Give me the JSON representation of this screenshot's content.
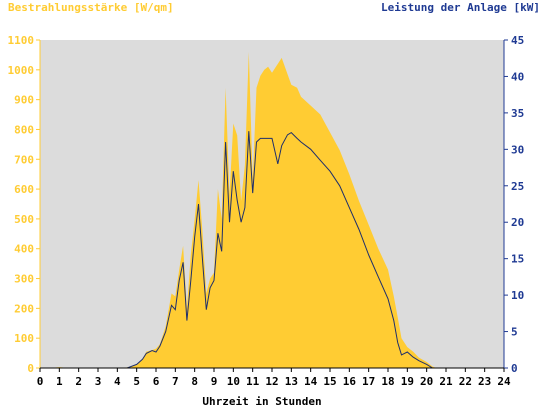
{
  "chart_data": {
    "type": "area",
    "title_left": "Bestrahlungsstärke [W/qm]",
    "title_right": "Leistung der Anlage [kW]",
    "xlabel": "Uhrzeit in Stunden",
    "x_ticks": [
      "0",
      "1",
      "2",
      "3",
      "4",
      "5",
      "6",
      "7",
      "8",
      "9",
      "10",
      "11",
      "12",
      "13",
      "14",
      "15",
      "16",
      "17",
      "18",
      "19",
      "20",
      "21",
      "22",
      "23",
      "24"
    ],
    "y_left_ticks": [
      "0",
      "100",
      "200",
      "300",
      "400",
      "500",
      "600",
      "700",
      "800",
      "900",
      "1000",
      "1100"
    ],
    "y_right_ticks": [
      "0",
      "5",
      "10",
      "15",
      "20",
      "25",
      "30",
      "35",
      "40",
      "45"
    ],
    "xlim": [
      0,
      24
    ],
    "y_left_lim": [
      0,
      1100
    ],
    "y_right_lim": [
      0,
      45
    ],
    "grid": false,
    "colors": {
      "plot_background": "#dcdcdc",
      "irradiance_fill": "#ffcc33",
      "power_line": "#1f2f6b",
      "left_axis_text": "#ffcc33",
      "right_axis_text": "#1f3a93",
      "axis_text": "#000000"
    },
    "series": [
      {
        "axis": "left",
        "style": "area",
        "x": [
          0,
          0.5,
          1,
          1.5,
          2,
          3,
          4,
          4.5,
          5,
          5.3,
          5.5,
          5.8,
          6,
          6.2,
          6.5,
          6.8,
          7,
          7.2,
          7.4,
          7.6,
          7.8,
          8,
          8.2,
          8.4,
          8.6,
          8.8,
          9,
          9.2,
          9.4,
          9.6,
          9.8,
          10,
          10.2,
          10.4,
          10.6,
          10.8,
          11,
          11.2,
          11.4,
          11.6,
          11.8,
          12,
          12.5,
          13,
          13.3,
          13.5,
          14,
          14.5,
          15,
          15.5,
          16,
          16.5,
          17,
          17.5,
          18,
          18.3,
          18.5,
          18.7,
          19,
          19.3,
          19.6,
          20,
          20.3,
          20.5,
          21,
          22,
          23,
          24
        ],
        "values": [
          0,
          0,
          3,
          0,
          0,
          0,
          0,
          2,
          10,
          30,
          55,
          60,
          65,
          80,
          140,
          250,
          240,
          330,
          410,
          200,
          380,
          500,
          630,
          460,
          250,
          300,
          320,
          600,
          500,
          940,
          580,
          820,
          780,
          560,
          680,
          1060,
          630,
          940,
          980,
          1000,
          1010,
          990,
          1040,
          950,
          940,
          910,
          880,
          850,
          790,
          730,
          650,
          560,
          480,
          400,
          330,
          240,
          170,
          100,
          70,
          55,
          35,
          20,
          5,
          0,
          0,
          0,
          0,
          0
        ]
      },
      {
        "axis": "right",
        "style": "line",
        "x": [
          0,
          0.5,
          1,
          1.5,
          2,
          3,
          4,
          4.5,
          5,
          5.3,
          5.5,
          5.8,
          6,
          6.2,
          6.5,
          6.8,
          7,
          7.2,
          7.4,
          7.6,
          7.8,
          8,
          8.2,
          8.4,
          8.6,
          8.8,
          9,
          9.2,
          9.4,
          9.6,
          9.8,
          10,
          10.2,
          10.4,
          10.6,
          10.8,
          11,
          11.2,
          11.4,
          11.6,
          11.8,
          12,
          12.3,
          12.5,
          12.8,
          13,
          13.3,
          13.5,
          14,
          14.5,
          15,
          15.5,
          16,
          16.5,
          17,
          17.5,
          18,
          18.3,
          18.5,
          18.7,
          19,
          19.3,
          19.6,
          20,
          20.3,
          20.5,
          21,
          22,
          23,
          24
        ],
        "values": [
          0,
          0,
          0,
          0,
          0,
          0,
          0,
          0,
          0.5,
          1.2,
          2,
          2.4,
          2.2,
          3,
          5,
          8.6,
          8,
          12,
          14.5,
          6.5,
          12,
          18,
          22.5,
          15,
          8,
          11,
          12,
          18.5,
          16,
          31,
          20,
          27,
          23,
          20,
          22,
          32.5,
          24,
          31,
          31.5,
          31.5,
          31.5,
          31.5,
          28,
          30.5,
          32,
          32.3,
          31.5,
          31,
          30,
          28.5,
          27,
          25,
          22,
          19,
          15.5,
          12.5,
          9.5,
          6.5,
          3.5,
          1.8,
          2.2,
          1.5,
          1,
          0.5,
          0,
          0,
          0,
          0,
          0,
          0
        ]
      }
    ]
  }
}
